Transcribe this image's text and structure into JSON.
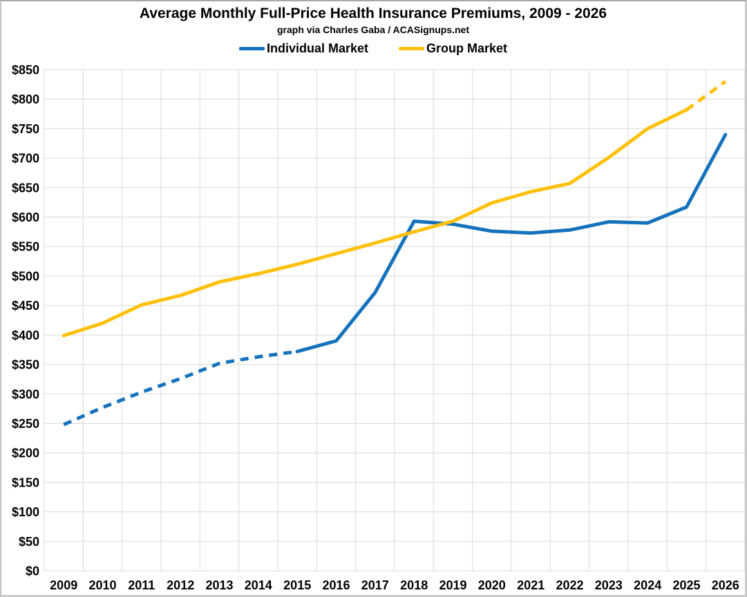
{
  "page": {
    "title": "Average Monthly Full-Price Health Insurance Premiums, 2009 - 2026",
    "subtitle": "graph via Charles Gaba / ACASignups.net"
  },
  "legend": {
    "items": [
      {
        "label": "Individual Market",
        "color": "#1572BC"
      },
      {
        "label": "Group Market",
        "color": "#FFC00B"
      }
    ]
  },
  "chart_data": {
    "type": "line",
    "title": "Average Monthly Full-Price Health Insurance Premiums, 2009 - 2026",
    "subtitle": "graph via Charles Gaba / ACASignups.net",
    "xlabel": "",
    "ylabel": "",
    "x": [
      "2009",
      "2010",
      "2011",
      "2012",
      "2013",
      "2014",
      "2015",
      "2016",
      "2017",
      "2018",
      "2019",
      "2020",
      "2021",
      "2022",
      "2023",
      "2024",
      "2025",
      "2026"
    ],
    "series": [
      {
        "name": "Individual Market",
        "color": "#1572BC",
        "values": [
          248,
          277,
          303,
          326,
          352,
          363,
          372,
          390,
          472,
          593,
          588,
          576,
          573,
          578,
          592,
          590,
          617,
          740
        ],
        "segments": [
          {
            "from": 0,
            "to": 6,
            "style": "dashed"
          },
          {
            "from": 6,
            "to": 17,
            "style": "solid"
          }
        ]
      },
      {
        "name": "Group Market",
        "color": "#FFC00B",
        "values": [
          399,
          420,
          451,
          467,
          490,
          504,
          520,
          538,
          556,
          575,
          593,
          624,
          643,
          657,
          701,
          750,
          782,
          830
        ],
        "segments": [
          {
            "from": 0,
            "to": 16,
            "style": "solid"
          },
          {
            "from": 16,
            "to": 17,
            "style": "dashed"
          }
        ]
      }
    ],
    "ylim": [
      0,
      850
    ],
    "ytick_step": 50,
    "ytick_prefix": "$",
    "ytick_labels_top_to_bottom": [
      "$850",
      "$800",
      "$750",
      "$700",
      "$650",
      "$600",
      "$550",
      "$500",
      "$450",
      "$400",
      "$350",
      "$300",
      "$250",
      "$200",
      "$150",
      "$100",
      "$50",
      "$0"
    ],
    "grid": true,
    "grid_color": "#d9d9d9",
    "background": "#ffffff",
    "legend_position": "top",
    "dashed_meaning": "estimated/projected values"
  }
}
